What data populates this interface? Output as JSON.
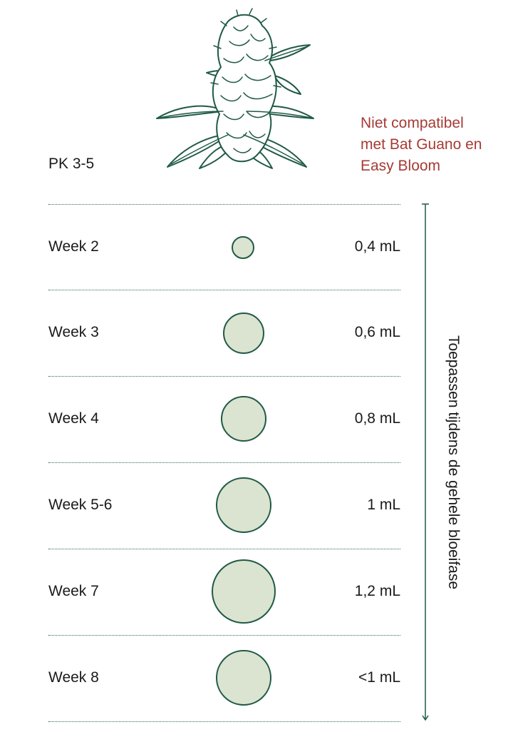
{
  "product": {
    "name": "PK 3-5"
  },
  "warning": {
    "lines": [
      "Niet compatibel",
      "met Bat Guano en",
      "Easy Bloom"
    ],
    "color": "#a63b35"
  },
  "illustration": {
    "icon": "cannabis-bud-icon"
  },
  "schedule": {
    "rows": [
      {
        "week": "Week 2",
        "dose": "0,4 mL",
        "dose_ml": 0.4
      },
      {
        "week": "Week 3",
        "dose": "0,6 mL",
        "dose_ml": 0.6
      },
      {
        "week": "Week 4",
        "dose": "0,8 mL",
        "dose_ml": 0.8
      },
      {
        "week": "Week 5-6",
        "dose": "1 mL",
        "dose_ml": 1.0
      },
      {
        "week": "Week 7",
        "dose": "1,2 mL",
        "dose_ml": 1.2
      },
      {
        "week": "Week 8",
        "dose": "<1 mL",
        "dose_ml": 1.0
      }
    ]
  },
  "timeline": {
    "label": "Toepassen tijdens de gehele bloeifase"
  },
  "colors": {
    "accent_green": "#1f5a45",
    "circle_fill": "#dbe4d0",
    "warning_red": "#a63b35"
  }
}
